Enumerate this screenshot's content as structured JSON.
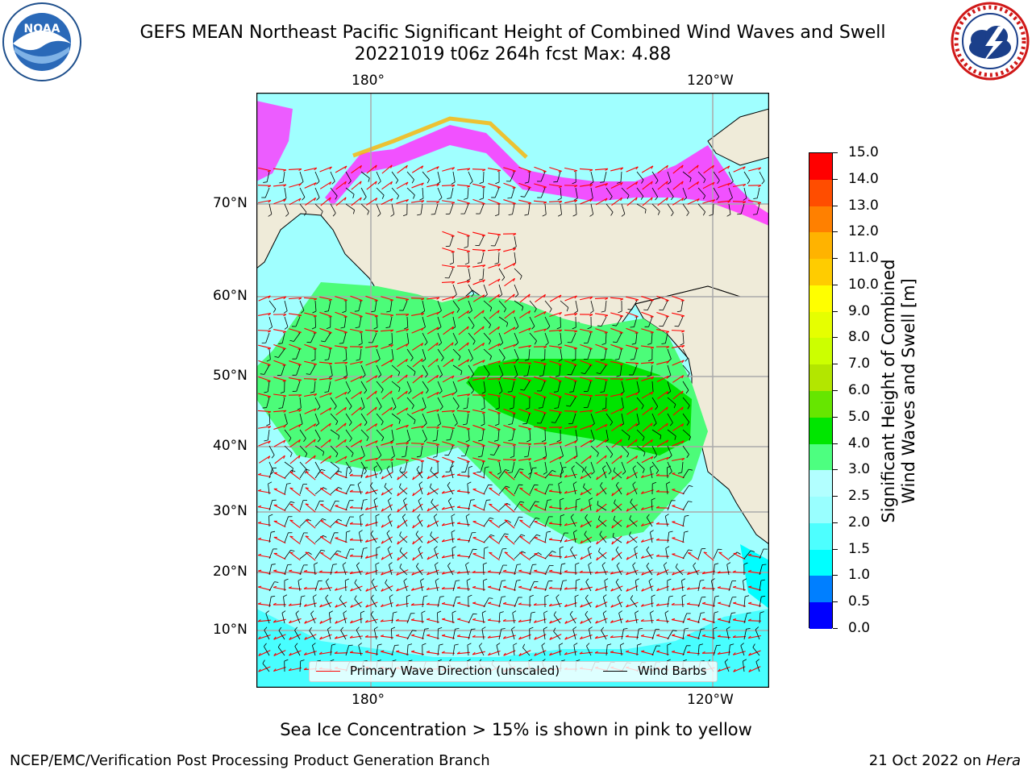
{
  "header": {
    "title_line1": "GEFS MEAN Northeast Pacific Significant Height of Combined Wind Waves and Swell",
    "title_line2": "20221019 t06z 264h fcst   Max: 4.88"
  },
  "logos": {
    "left": {
      "name": "noaa-logo",
      "text": "NOAA"
    },
    "right": {
      "name": "nws-logo",
      "text": "NATIONAL WEATHER SERVICE"
    }
  },
  "map": {
    "lon_labels_top": [
      "180°",
      "120°W"
    ],
    "lon_labels_bottom": [
      "180°",
      "120°W"
    ],
    "lat_labels": [
      "70°N",
      "60°N",
      "50°N",
      "40°N",
      "30°N",
      "20°N",
      "10°N"
    ],
    "legend": {
      "wave_direction": "Primary Wave Direction (unscaled)",
      "wind_barbs": "Wind Barbs",
      "wave_color": "#ff0000",
      "wind_color": "#000000"
    },
    "colors": {
      "land": "#efebd9",
      "ocean_2_3": "#a0ffff",
      "ocean_3_4": "#4cfc79",
      "ocean_4_5": "#00e400",
      "ocean_1_1_5": "#00fdff",
      "ice_edge": "#ff33ff"
    }
  },
  "colorbar": {
    "label_line1": "Significant Height of Combined",
    "label_line2": "Wind Waves and Swell [m]",
    "ticks": [
      "0.0",
      "0.5",
      "1.0",
      "1.5",
      "2.0",
      "2.5",
      "3.0",
      "4.0",
      "5.0",
      "6.0",
      "7.0",
      "8.0",
      "9.0",
      "10.0",
      "11.0",
      "12.0",
      "13.0",
      "14.0",
      "15.0"
    ],
    "colors": [
      "#0000ff",
      "#007fff",
      "#00ffff",
      "#4dffff",
      "#99ffff",
      "#b2ffff",
      "#4dff80",
      "#00e600",
      "#66e600",
      "#b3e600",
      "#ccff00",
      "#e6ff00",
      "#ffff00",
      "#ffcc00",
      "#ffb300",
      "#ff8000",
      "#ff4d00",
      "#ff0000"
    ]
  },
  "footer": {
    "sea_ice_note": "Sea Ice Concentration > 15% is shown in pink to yellow",
    "producer": "NCEP/EMC/Verification Post Processing Product Generation Branch",
    "date": "21 Oct 2022 on ",
    "machine": "Hera"
  }
}
